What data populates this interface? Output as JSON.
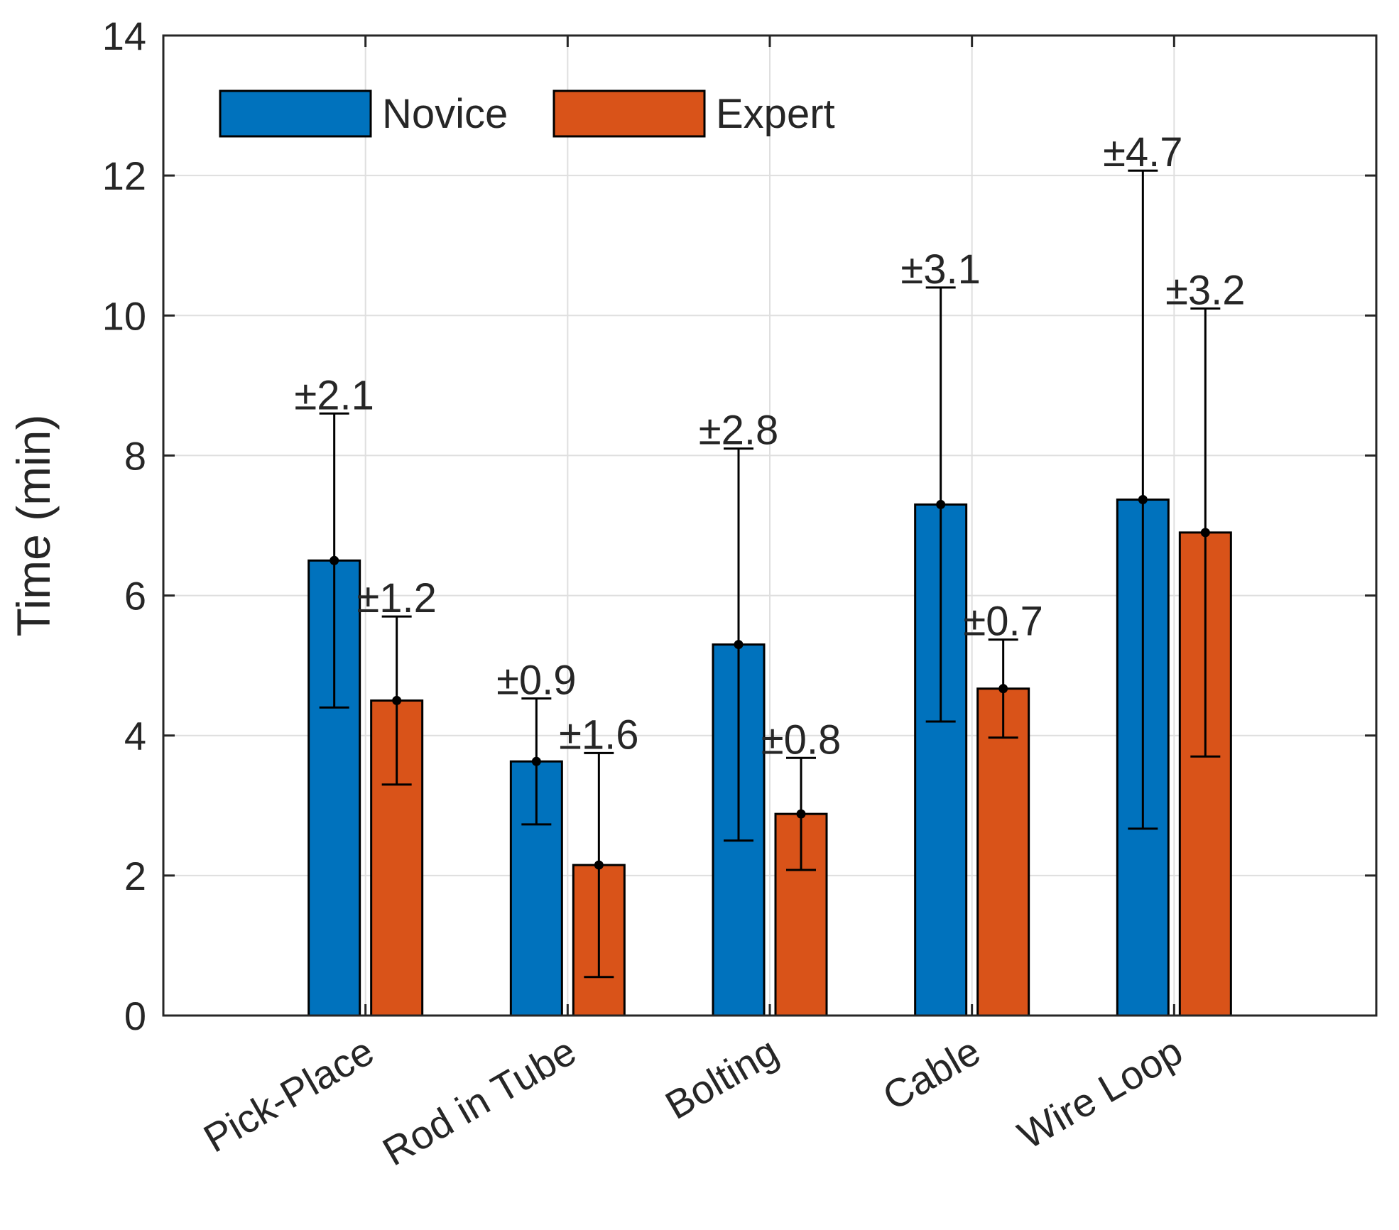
{
  "chart_data": {
    "type": "bar",
    "title": "",
    "xlabel": "",
    "ylabel": "Time (min)",
    "ylim": [
      0,
      14
    ],
    "yticks": [
      0,
      2,
      4,
      6,
      8,
      10,
      12,
      14
    ],
    "grid": true,
    "legend_position": "top-left",
    "categories": [
      "Pick-Place",
      "Rod in Tube",
      "Bolting",
      "Cable",
      "Wire Loop"
    ],
    "series": [
      {
        "name": "Novice",
        "color": "#0072BD",
        "values": [
          6.5,
          3.63,
          5.3,
          7.3,
          7.37
        ],
        "errors": [
          2.1,
          0.9,
          2.8,
          3.1,
          4.7
        ],
        "error_labels": [
          "±2.1",
          "±0.9",
          "±2.8",
          "±3.1",
          "±4.7"
        ]
      },
      {
        "name": "Expert",
        "color": "#D95319",
        "values": [
          4.5,
          2.15,
          2.88,
          4.67,
          6.9
        ],
        "errors": [
          1.2,
          1.6,
          0.8,
          0.7,
          3.2
        ],
        "error_labels": [
          "±1.2",
          "±1.6",
          "±0.8",
          "±0.7",
          "±3.2"
        ]
      }
    ]
  }
}
